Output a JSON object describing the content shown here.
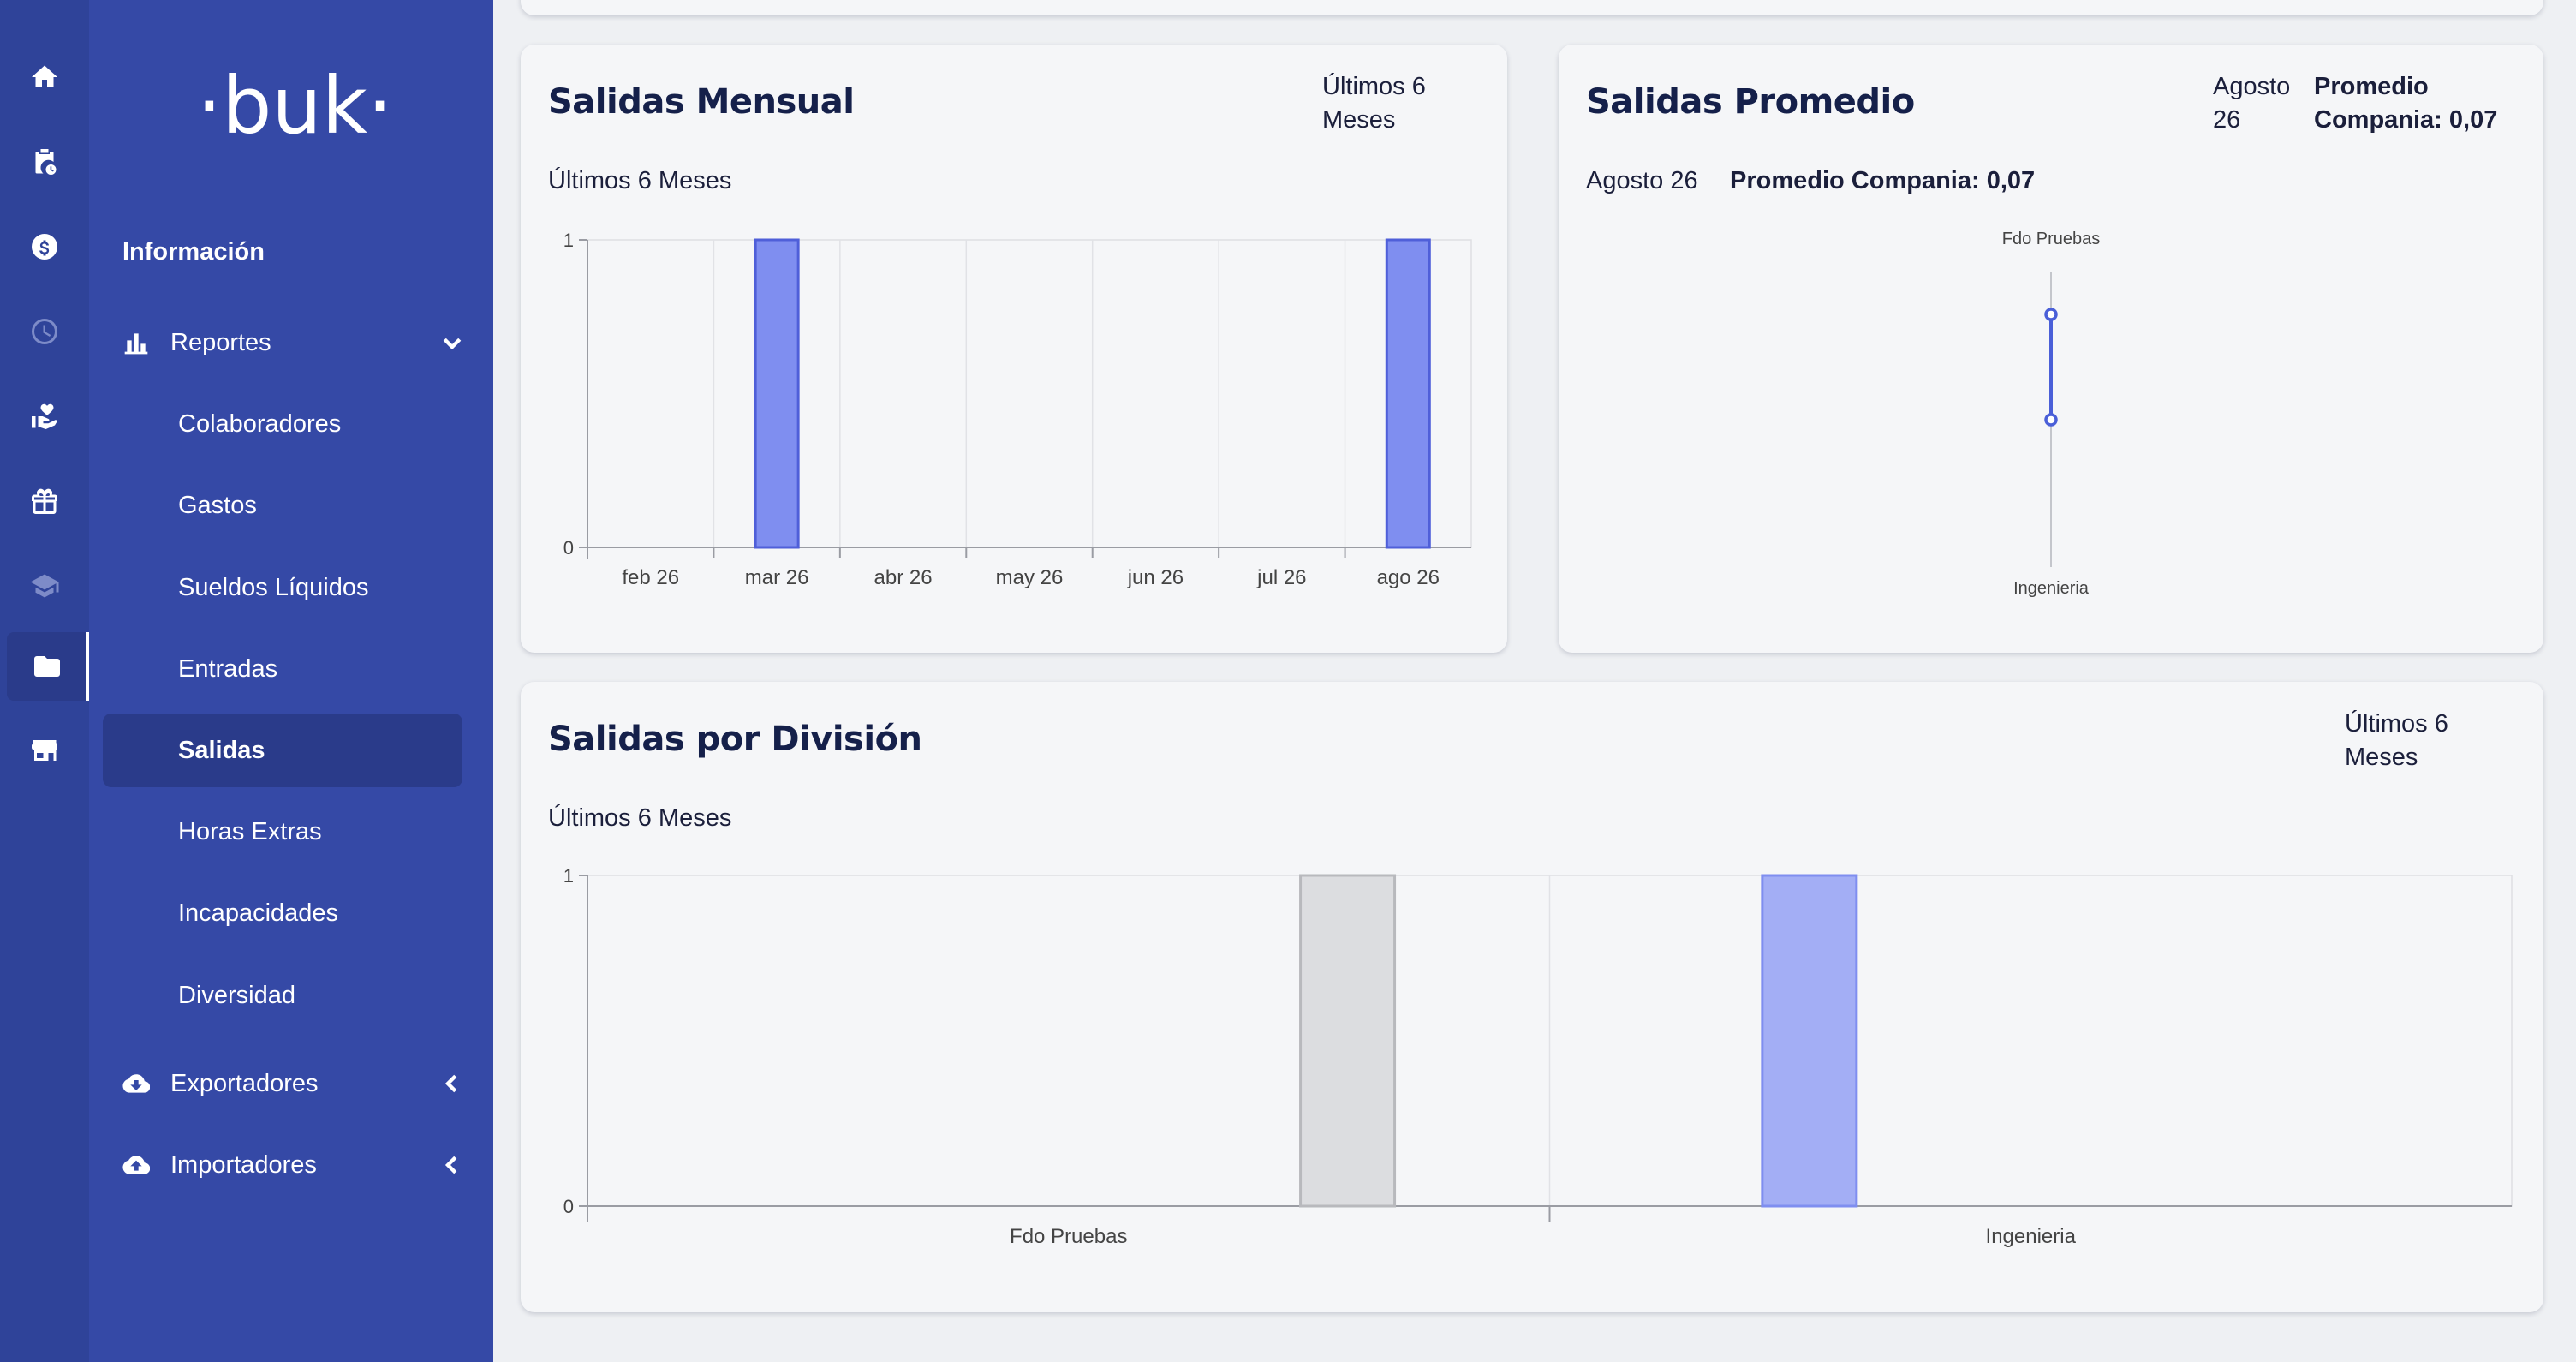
{
  "rail": {
    "items": [
      {
        "icon": "home-icon"
      },
      {
        "icon": "clipboard-clock-icon"
      },
      {
        "icon": "dollar-icon"
      },
      {
        "icon": "clock-icon"
      },
      {
        "icon": "hand-heart-icon"
      },
      {
        "icon": "gift-icon"
      },
      {
        "icon": "graduation-cap-icon"
      },
      {
        "icon": "folder-icon"
      },
      {
        "icon": "store-icon"
      }
    ]
  },
  "brand": {
    "logo_text": "·buk·"
  },
  "nav": {
    "heading": "Información",
    "reportes_label": "Reportes",
    "reportes_items": [
      "Colaboradores",
      "Gastos",
      "Sueldos Líquidos",
      "Entradas",
      "Salidas",
      "Horas Extras",
      "Incapacidades",
      "Diversidad"
    ],
    "selected_item": "Salidas",
    "exportadores_label": "Exportadores",
    "importadores_label": "Importadores"
  },
  "cards": {
    "mensual": {
      "title": "Salidas Mensual",
      "range_line1": "Últimos 6",
      "range_line2": "Meses",
      "subtitle": "Últimos 6 Meses"
    },
    "promedio": {
      "title": "Salidas Promedio",
      "period_line1": "Agosto",
      "period_line2": "26",
      "avg_line1": "Promedio",
      "avg_line2": "Compania: 0,07",
      "sub_period": "Agosto 26",
      "sub_avg": "Promedio Compania: 0,07"
    },
    "division": {
      "title": "Salidas por División",
      "range_line1": "Últimos 6",
      "range_line2": "Meses",
      "subtitle": "Últimos 6 Meses"
    }
  },
  "colors": {
    "bar_blue": "#7f8ef0",
    "bar_blue_border": "#4f5fd9",
    "bar_light_blue": "#a3aef5",
    "bar_gray": "#dcdde0",
    "line_blue": "#4a5fd8"
  },
  "chart_data": [
    {
      "type": "bar",
      "categories": [
        "feb 26",
        "mar 26",
        "abr 26",
        "may 26",
        "jun 26",
        "jul 26",
        "ago 26"
      ],
      "values": [
        0,
        1,
        0,
        0,
        0,
        0,
        1
      ],
      "title": "Salidas Mensual",
      "ylim": [
        0,
        1
      ],
      "yticks": [
        "0",
        "1"
      ],
      "grid": true
    },
    {
      "type": "line",
      "categories": [
        "Fdo Pruebas",
        "Ingenieria"
      ],
      "title": "Salidas Promedio"
    },
    {
      "type": "bar",
      "categories": [
        "Fdo Pruebas",
        "Ingenieria"
      ],
      "values": [
        1,
        1
      ],
      "title": "Salidas por División",
      "ylim": [
        0,
        1
      ],
      "yticks": [
        "0",
        "1"
      ],
      "grid": true
    }
  ]
}
